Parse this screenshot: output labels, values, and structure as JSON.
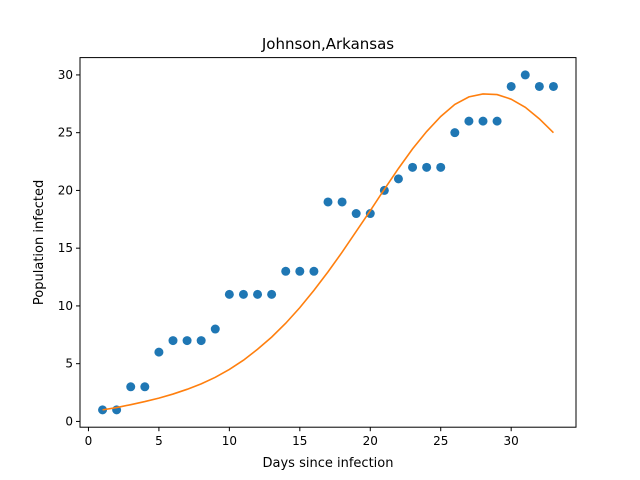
{
  "chart_data": {
    "type": "scatter",
    "title": "Johnson,Arkansas",
    "xlabel": "Days since infection",
    "ylabel": "Population infected",
    "xlim": [
      -0.6,
      34.6
    ],
    "ylim": [
      -0.5,
      31.5
    ],
    "xticks": [
      0,
      5,
      10,
      15,
      20,
      25,
      30
    ],
    "yticks": [
      0,
      5,
      10,
      15,
      20,
      25,
      30
    ],
    "grid": false,
    "series": [
      {
        "kind": "scatter",
        "color": "#1f77b4",
        "x": [
          1,
          2,
          3,
          4,
          5,
          6,
          7,
          8,
          9,
          10,
          11,
          12,
          13,
          14,
          15,
          16,
          17,
          18,
          19,
          20,
          21,
          22,
          23,
          24,
          25,
          26,
          27,
          28,
          29,
          30,
          31,
          32,
          33
        ],
        "y": [
          1,
          1,
          3,
          3,
          6,
          7,
          7,
          7,
          8,
          11,
          11,
          11,
          11,
          13,
          13,
          13,
          19,
          19,
          18,
          18,
          20,
          21,
          22,
          22,
          22,
          25,
          26,
          26,
          26,
          29,
          30,
          29,
          29
        ]
      },
      {
        "kind": "line",
        "color": "#ff7f0e",
        "x": [
          1,
          2,
          3,
          4,
          5,
          6,
          7,
          8,
          9,
          10,
          11,
          12,
          13,
          14,
          15,
          16,
          17,
          18,
          19,
          20,
          21,
          22,
          23,
          24,
          25,
          26,
          27,
          28,
          29,
          30,
          31,
          32,
          33
        ],
        "y": [
          1.0,
          1.2,
          1.45,
          1.72,
          2.02,
          2.37,
          2.78,
          3.25,
          3.82,
          4.5,
          5.3,
          6.25,
          7.3,
          8.5,
          9.85,
          11.35,
          12.95,
          14.65,
          16.45,
          18.25,
          20.1,
          21.9,
          23.6,
          25.1,
          26.4,
          27.45,
          28.1,
          28.35,
          28.3,
          27.9,
          27.2,
          26.2,
          25.0
        ]
      }
    ]
  }
}
